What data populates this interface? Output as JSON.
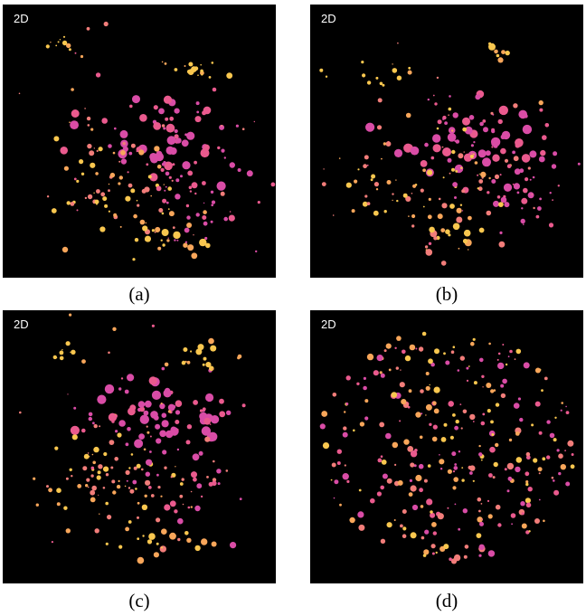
{
  "colors": {
    "background": "#000000",
    "palette": [
      "#f9c74f",
      "#f8a65a",
      "#f27d7a",
      "#ea5a8e",
      "#d94ca6"
    ]
  },
  "panels": [
    {
      "tag": "2D",
      "caption": "(a)"
    },
    {
      "tag": "2D",
      "caption": "(b)"
    },
    {
      "tag": "2D",
      "caption": "(c)"
    },
    {
      "tag": "2D",
      "caption": "(d)"
    }
  ]
}
